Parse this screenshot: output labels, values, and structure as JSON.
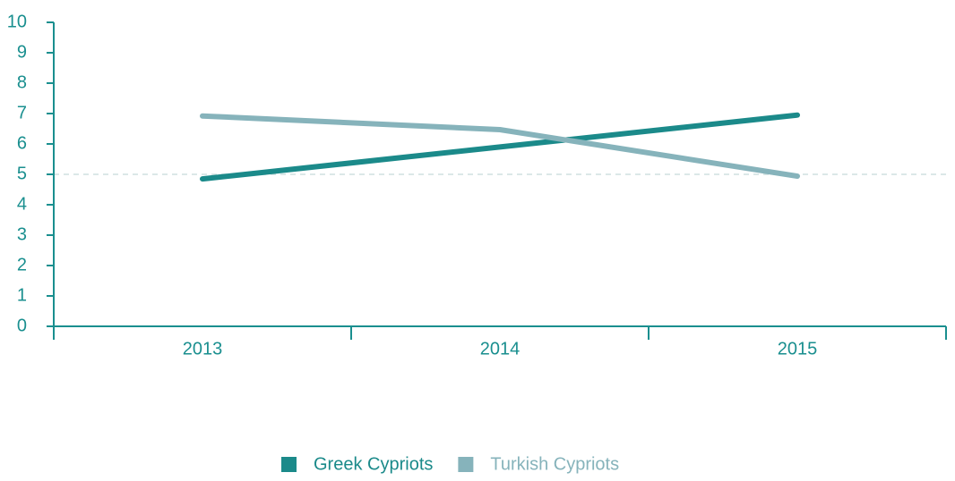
{
  "chart_data": {
    "type": "line",
    "categories": [
      "2013",
      "2014",
      "2015"
    ],
    "series": [
      {
        "name": "Greek Cypriots",
        "color": "#1b8a8a",
        "values": [
          4.85,
          5.9,
          6.95
        ]
      },
      {
        "name": "Turkish Cypriots",
        "color": "#86b3bb",
        "values": [
          6.92,
          6.47,
          4.94
        ]
      }
    ],
    "ylim": [
      0,
      10
    ],
    "yticks": [
      0,
      1,
      2,
      3,
      4,
      5,
      6,
      7,
      8,
      9,
      10
    ],
    "reference_line": 5,
    "legend": "bottom"
  }
}
